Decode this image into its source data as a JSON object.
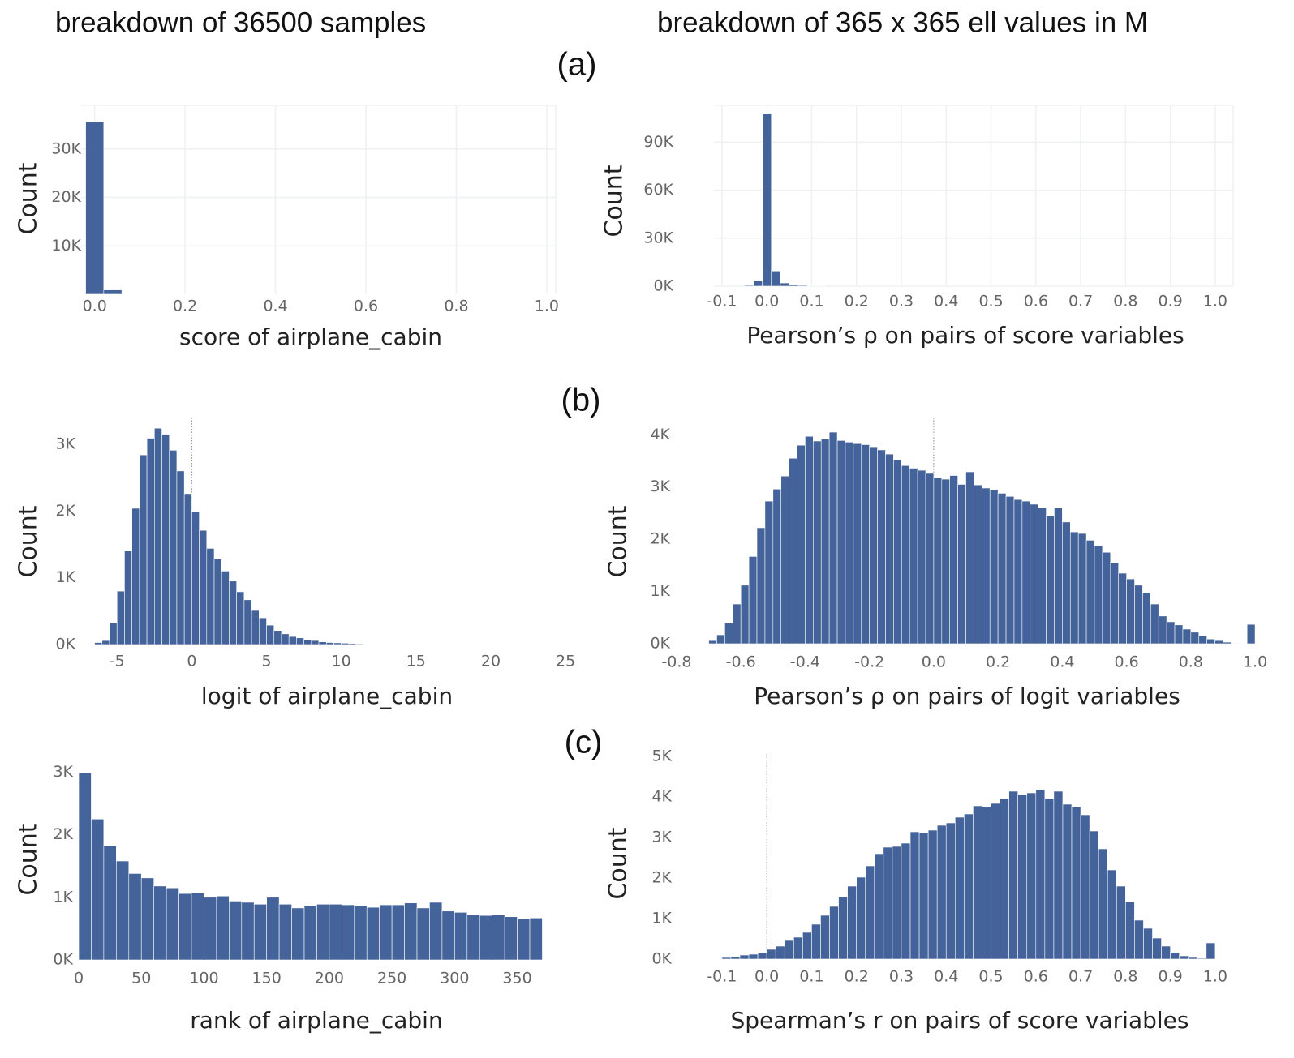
{
  "header": {
    "left": "breakdown of 36500 samples",
    "right": "breakdown of 365 x 365   ell values in M"
  },
  "panel_labels": [
    "(a)",
    "(b)",
    "(c)"
  ],
  "chart_data": [
    {
      "type": "histogram",
      "x_label": "score of airplane_cabin",
      "y_label": "Count",
      "color": "#44639a",
      "grid": true,
      "bins": [
        -0.02,
        0.02,
        0.06
      ],
      "values": [
        35600,
        900
      ],
      "xlim": [
        -0.03,
        1.02
      ],
      "xticks": [
        {
          "value": 0,
          "label": "0.0"
        },
        0.2,
        0.4,
        0.6,
        0.8,
        {
          "value": 1,
          "label": "1.0"
        }
      ],
      "ylim": [
        0,
        39000
      ],
      "yticks": [
        {
          "value": 10000,
          "label": "10K"
        },
        {
          "value": 20000,
          "label": "20K"
        },
        {
          "value": 30000,
          "label": "30K"
        }
      ]
    },
    {
      "type": "histogram",
      "x_label": "Pearson’s  ρ on pairs of score variables",
      "y_label": "Count",
      "color": "#44639a",
      "grid": true,
      "bins": [
        -0.05,
        -0.03,
        -0.01,
        0.01,
        0.03,
        0.05,
        0.07,
        0.09,
        0.11,
        0.13
      ],
      "values": [
        500,
        3500,
        108000,
        9500,
        2000,
        800,
        500,
        300,
        200
      ],
      "xlim": [
        -0.118,
        1.04
      ],
      "xticks": [
        -0.1,
        {
          "value": 0,
          "label": "0.0"
        },
        0.1,
        0.2,
        0.3,
        0.4,
        0.5,
        0.6,
        0.7,
        0.8,
        0.9,
        {
          "value": 1,
          "label": "1.0"
        }
      ],
      "ylim": [
        0,
        113000
      ],
      "yticks": [
        {
          "value": 0,
          "label": "0K"
        },
        {
          "value": 30000,
          "label": "30K"
        },
        {
          "value": 60000,
          "label": "60K"
        },
        {
          "value": 90000,
          "label": "90K"
        }
      ]
    },
    {
      "type": "histogram",
      "x_label": "logit of airplane_cabin",
      "y_label": "Count",
      "color": "#44639a",
      "grid": false,
      "reference_line": 0,
      "bins": [
        -6.5,
        -6,
        -5.5,
        -5,
        -4.5,
        -4,
        -3.5,
        -3,
        -2.5,
        -2,
        -1.5,
        -1,
        -0.5,
        0,
        0.5,
        1,
        1.5,
        2,
        2.5,
        3,
        3.5,
        4,
        4.5,
        5,
        5.5,
        6,
        6.5,
        7,
        7.5,
        8,
        8.5,
        9,
        9.5,
        10,
        10.5,
        11,
        11.5
      ],
      "values": [
        30,
        60,
        330,
        800,
        1400,
        2040,
        2840,
        3090,
        3240,
        3150,
        2910,
        2600,
        2260,
        1990,
        1710,
        1440,
        1280,
        1100,
        950,
        790,
        670,
        510,
        400,
        290,
        210,
        160,
        120,
        100,
        70,
        60,
        40,
        30,
        25,
        20,
        15,
        10
      ],
      "xlim": [
        -7.4,
        25.7
      ],
      "xticks": [
        -5,
        0,
        5,
        10,
        15,
        20,
        25
      ],
      "ylim": [
        0,
        3400
      ],
      "yticks": [
        {
          "value": 0,
          "label": "0K"
        },
        {
          "value": 1000,
          "label": "1K"
        },
        {
          "value": 2000,
          "label": "2K"
        },
        {
          "value": 3000,
          "label": "3K"
        }
      ]
    },
    {
      "type": "histogram",
      "x_label": "Pearson’s  ρ on pairs of logit variables",
      "y_label": "Count",
      "color": "#44639a",
      "grid": false,
      "reference_line": 0,
      "bins": [
        -0.7,
        -0.675,
        -0.65,
        -0.625,
        -0.6,
        -0.575,
        -0.55,
        -0.525,
        -0.5,
        -0.475,
        -0.45,
        -0.425,
        -0.4,
        -0.375,
        -0.35,
        -0.325,
        -0.3,
        -0.275,
        -0.25,
        -0.225,
        -0.2,
        -0.175,
        -0.15,
        -0.125,
        -0.1,
        -0.075,
        -0.05,
        -0.025,
        0,
        0.025,
        0.05,
        0.075,
        0.1,
        0.125,
        0.15,
        0.175,
        0.2,
        0.225,
        0.25,
        0.275,
        0.3,
        0.325,
        0.35,
        0.375,
        0.4,
        0.425,
        0.45,
        0.475,
        0.5,
        0.525,
        0.55,
        0.575,
        0.6,
        0.625,
        0.65,
        0.675,
        0.7,
        0.725,
        0.75,
        0.775,
        0.8,
        0.825,
        0.85,
        0.875,
        0.9,
        0.925,
        0.95,
        0.975,
        1.0
      ],
      "values": [
        60,
        170,
        400,
        760,
        1120,
        1670,
        2220,
        2730,
        2960,
        3210,
        3550,
        3800,
        3970,
        3880,
        3920,
        4050,
        3890,
        3860,
        3830,
        3810,
        3770,
        3710,
        3630,
        3520,
        3410,
        3360,
        3320,
        3260,
        3180,
        3150,
        3220,
        3050,
        3290,
        3040,
        2980,
        2950,
        2880,
        2820,
        2760,
        2730,
        2670,
        2600,
        2450,
        2600,
        2330,
        2140,
        2110,
        1980,
        1880,
        1750,
        1550,
        1350,
        1240,
        1120,
        980,
        760,
        530,
        420,
        360,
        280,
        220,
        160,
        90,
        60,
        30,
        10,
        0,
        370
      ],
      "xlim": [
        -0.81,
        1.02
      ],
      "xticks": [
        -0.8,
        -0.6,
        -0.4,
        -0.2,
        {
          "value": 0,
          "label": "0.0"
        },
        0.2,
        0.4,
        0.6,
        0.8,
        {
          "value": 1,
          "label": "1.0"
        }
      ],
      "ylim": [
        0,
        4330
      ],
      "yticks": [
        {
          "value": 0,
          "label": "0K"
        },
        {
          "value": 1000,
          "label": "1K"
        },
        {
          "value": 2000,
          "label": "2K"
        },
        {
          "value": 3000,
          "label": "3K"
        },
        {
          "value": 4000,
          "label": "4K"
        }
      ]
    },
    {
      "type": "histogram",
      "x_label": "rank of airplane_cabin",
      "y_label": "Count",
      "color": "#44639a",
      "grid": false,
      "bins": [
        0,
        10,
        20,
        30,
        40,
        50,
        60,
        70,
        80,
        90,
        100,
        110,
        120,
        130,
        140,
        150,
        160,
        170,
        180,
        190,
        200,
        210,
        220,
        230,
        240,
        250,
        260,
        270,
        280,
        290,
        300,
        310,
        320,
        330,
        340,
        350,
        360,
        370
      ],
      "values": [
        2990,
        2250,
        1820,
        1580,
        1380,
        1310,
        1180,
        1150,
        1060,
        1070,
        1000,
        1020,
        940,
        920,
        890,
        1000,
        890,
        830,
        870,
        890,
        890,
        880,
        870,
        840,
        880,
        880,
        910,
        830,
        920,
        780,
        760,
        720,
        710,
        720,
        690,
        660,
        670
      ],
      "xlim": [
        0,
        371
      ],
      "xticks": [
        0,
        50,
        100,
        150,
        200,
        250,
        300,
        350
      ],
      "ylim": [
        0,
        3160
      ],
      "yticks": [
        {
          "value": 0,
          "label": "0K"
        },
        {
          "value": 1000,
          "label": "1K"
        },
        {
          "value": 2000,
          "label": "2K"
        },
        {
          "value": 3000,
          "label": "3K"
        }
      ]
    },
    {
      "type": "histogram",
      "x_label": "Spearman’s  r on pairs of score variables",
      "y_label": "Count",
      "color": "#44639a",
      "grid": false,
      "reference_line": 0,
      "bins": [
        -0.1,
        -0.08,
        -0.06,
        -0.04,
        -0.02,
        0,
        0.02,
        0.04,
        0.06,
        0.08,
        0.1,
        0.12,
        0.14,
        0.16,
        0.18,
        0.2,
        0.22,
        0.24,
        0.26,
        0.28,
        0.3,
        0.32,
        0.34,
        0.36,
        0.38,
        0.4,
        0.42,
        0.44,
        0.46,
        0.48,
        0.5,
        0.52,
        0.54,
        0.56,
        0.58,
        0.6,
        0.62,
        0.64,
        0.66,
        0.68,
        0.7,
        0.72,
        0.74,
        0.76,
        0.78,
        0.8,
        0.82,
        0.84,
        0.86,
        0.88,
        0.9,
        0.92,
        0.94,
        0.96,
        0.98,
        1.0
      ],
      "values": [
        40,
        60,
        100,
        120,
        160,
        240,
        320,
        460,
        540,
        660,
        860,
        1080,
        1300,
        1540,
        1800,
        2020,
        2300,
        2600,
        2760,
        2780,
        2860,
        3140,
        3120,
        3180,
        3300,
        3360,
        3500,
        3580,
        3780,
        3760,
        3840,
        3960,
        4140,
        4060,
        4100,
        4180,
        3960,
        4140,
        3820,
        3760,
        3560,
        3160,
        2720,
        2200,
        1800,
        1420,
        960,
        760,
        520,
        320,
        160,
        80,
        40,
        20,
        400
      ],
      "xlim": [
        -0.145,
        1.04
      ],
      "xticks": [
        -0.1,
        {
          "value": 0,
          "label": "0.0"
        },
        0.1,
        0.2,
        0.3,
        0.4,
        0.5,
        0.6,
        0.7,
        0.8,
        0.9,
        {
          "value": 1,
          "label": "1.0"
        }
      ],
      "ylim": [
        0,
        5060
      ],
      "yticks": [
        {
          "value": 0,
          "label": "0K"
        },
        {
          "value": 1000,
          "label": "1K"
        },
        {
          "value": 2000,
          "label": "2K"
        },
        {
          "value": 3000,
          "label": "3K"
        },
        {
          "value": 4000,
          "label": "4K"
        },
        {
          "value": 5000,
          "label": "5K"
        }
      ]
    }
  ]
}
